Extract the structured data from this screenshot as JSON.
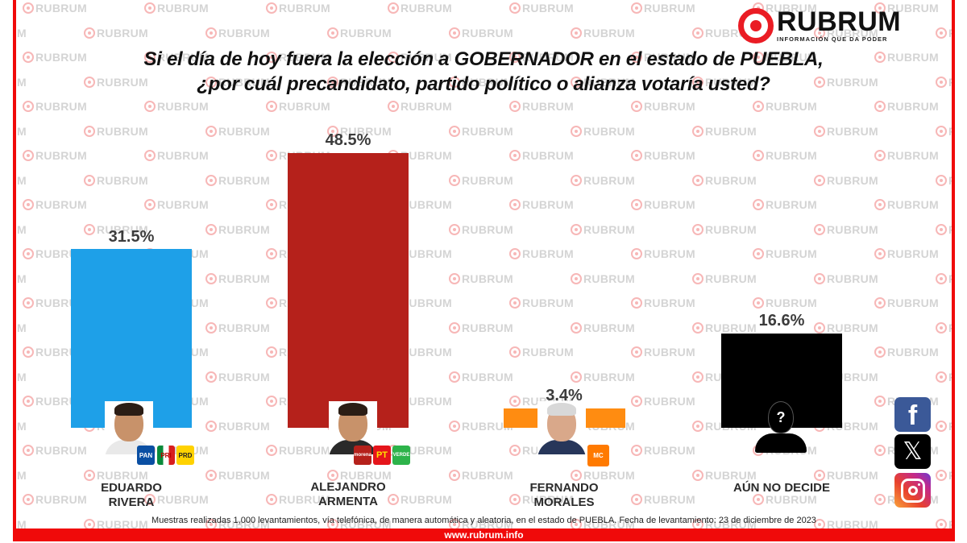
{
  "brand": {
    "name": "RUBRUM",
    "tagline": "INFORMACIÓN QUE DA PODER",
    "primary_color": "#ea1c24",
    "frame_color": "#f00a0a",
    "watermark_text": "RUBRUM",
    "website": "www.rubrum.info"
  },
  "title": {
    "line1": "Si el día de hoy fuera la elección a GOBERNADOR en el estado de PUEBLA,",
    "line2": "¿por cuál precandidato, partido político o alianza votaría usted?"
  },
  "candidates": [
    {
      "name_line1": "EDUARDO",
      "name_line2": "RIVERA",
      "value_label": "31.5%",
      "color": "#1ea0e8",
      "parties": [
        "PAN",
        "PRI",
        "PRD"
      ]
    },
    {
      "name_line1": "ALEJANDRO",
      "name_line2": "ARMENTA",
      "value_label": "48.5%",
      "color": "#b5211b",
      "parties": [
        "morena",
        "PT",
        "VERDE"
      ]
    },
    {
      "name_line1": "FERNANDO",
      "name_line2": "MORALES",
      "value_label": "3.4%",
      "color": "#ff8c11",
      "parties": [
        "MC"
      ]
    },
    {
      "name_line1": "AÚN NO DECIDE",
      "name_line2": "",
      "value_label": "16.6%",
      "color": "#000000",
      "parties": []
    }
  ],
  "unknown_icon_glyph": "?",
  "social": [
    {
      "name": "facebook",
      "glyph": "f"
    },
    {
      "name": "x",
      "glyph": "𝕏"
    },
    {
      "name": "instagram",
      "glyph": ""
    }
  ],
  "footnote": "Muestras realizadas 1,000 levantamientos, vía telefónica, de manera automática y aleatoria, en el estado de PUEBLA. Fecha de levantamiento: 23 de diciembre de 2023",
  "chart_data": {
    "type": "bar",
    "title": "Si el día de hoy fuera la elección a GOBERNADOR en el estado de PUEBLA, ¿por cuál precandidato, partido político o alianza votaría usted?",
    "categories": [
      "EDUARDO RIVERA",
      "ALEJANDRO ARMENTA",
      "FERNANDO MORALES",
      "AÚN NO DECIDE"
    ],
    "values": [
      31.5,
      48.5,
      3.4,
      16.6
    ],
    "value_labels": [
      "31.5%",
      "48.5%",
      "3.4%",
      "16.6%"
    ],
    "colors": [
      "#1ea0e8",
      "#b5211b",
      "#ff8c11",
      "#000000"
    ],
    "party_affiliations": [
      [
        "PAN",
        "PRI",
        "PRD"
      ],
      [
        "morena",
        "PT",
        "VERDE"
      ],
      [
        "MC"
      ],
      []
    ],
    "xlabel": "",
    "ylabel": "",
    "unit": "%",
    "grid": false,
    "legend": "none",
    "note": "Muestras realizadas 1,000 levantamientos, vía telefónica, de manera automática y aleatoria, en el estado de PUEBLA. Fecha de levantamiento: 23 de diciembre de 2023"
  }
}
